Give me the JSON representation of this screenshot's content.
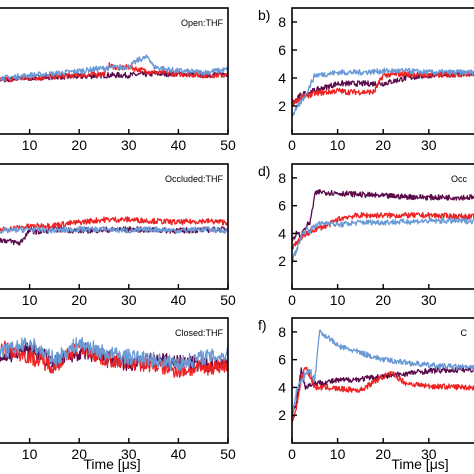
{
  "colors": {
    "dark_purple": "#5a0a4a",
    "red": "#ee2222",
    "light_blue": "#6a9ad6"
  },
  "xlabel_left": "Time [μs]",
  "xlabel_right": "Time [μs]",
  "chart_data": [
    {
      "type": "line",
      "letter": "",
      "title": "Open:THF",
      "xlim": [
        0,
        50
      ],
      "ylim": [
        0,
        9
      ],
      "xticks": [
        10,
        20,
        30,
        40,
        50
      ],
      "yticks": [],
      "series": [
        {
          "color": "#5a0a4a",
          "x": [
            0,
            5,
            10,
            15,
            20,
            25,
            30,
            35,
            40,
            45,
            50
          ],
          "y": [
            4.0,
            3.9,
            4.0,
            4.1,
            4.1,
            4.2,
            4.2,
            4.3,
            4.3,
            4.2,
            4.3
          ]
        },
        {
          "color": "#ee2222",
          "x": [
            0,
            5,
            10,
            15,
            20,
            25,
            26,
            28,
            30,
            32,
            35,
            40,
            45,
            50
          ],
          "y": [
            3.7,
            3.9,
            4.0,
            4.1,
            4.2,
            4.3,
            4.9,
            4.7,
            4.8,
            4.6,
            4.4,
            4.3,
            4.2,
            4.2
          ]
        },
        {
          "color": "#6a9ad6",
          "x": [
            0,
            5,
            10,
            15,
            20,
            25,
            30,
            32,
            34,
            35,
            38,
            40,
            45,
            50
          ],
          "y": [
            4.2,
            4.0,
            4.2,
            4.3,
            4.5,
            4.7,
            4.8,
            5.3,
            5.5,
            4.8,
            4.6,
            4.5,
            4.4,
            4.6
          ]
        }
      ]
    },
    {
      "type": "line",
      "letter": "b)",
      "title": "",
      "xlim": [
        0,
        50
      ],
      "ylim": [
        0,
        9
      ],
      "xticks": [
        0,
        10,
        20,
        30
      ],
      "yticks": [
        2,
        4,
        6,
        8
      ],
      "series": [
        {
          "color": "#5a0a4a",
          "x": [
            0,
            2,
            5,
            8,
            10,
            15,
            20,
            25,
            30,
            40,
            50
          ],
          "y": [
            2.1,
            2.8,
            3.1,
            3.4,
            3.6,
            3.6,
            3.6,
            4.0,
            4.2,
            4.3,
            4.3
          ]
        },
        {
          "color": "#ee2222",
          "x": [
            0,
            2,
            5,
            8,
            10,
            12,
            15,
            18,
            20,
            25,
            30,
            40,
            50
          ],
          "y": [
            2.2,
            2.6,
            2.9,
            3.0,
            3.1,
            3.0,
            3.0,
            3.0,
            4.2,
            4.3,
            4.2,
            4.3,
            4.2
          ]
        },
        {
          "color": "#6a9ad6",
          "x": [
            0,
            1,
            3,
            5,
            8,
            10,
            15,
            20,
            25,
            30,
            40,
            50
          ],
          "y": [
            1.3,
            1.8,
            2.8,
            4.2,
            4.3,
            4.4,
            4.4,
            4.5,
            4.5,
            4.4,
            4.4,
            4.3
          ]
        }
      ]
    },
    {
      "type": "line",
      "letter": "",
      "title": "Occluded:THF",
      "xlim": [
        0,
        50
      ],
      "ylim": [
        0,
        9
      ],
      "xticks": [
        10,
        20,
        30,
        40,
        50
      ],
      "yticks": [],
      "series": [
        {
          "color": "#5a0a4a",
          "x": [
            0,
            3,
            5,
            8,
            10,
            12,
            15,
            20,
            30,
            40,
            50
          ],
          "y": [
            3.8,
            3.6,
            3.5,
            3.3,
            4.2,
            4.1,
            4.3,
            4.2,
            4.3,
            4.2,
            4.3
          ]
        },
        {
          "color": "#ee2222",
          "x": [
            0,
            5,
            10,
            15,
            20,
            25,
            30,
            35,
            40,
            45,
            50
          ],
          "y": [
            4.2,
            4.3,
            4.5,
            4.6,
            4.8,
            5.0,
            5.0,
            4.9,
            4.8,
            4.9,
            4.8
          ]
        },
        {
          "color": "#6a9ad6",
          "x": [
            0,
            5,
            10,
            15,
            20,
            25,
            30,
            35,
            40,
            45,
            50
          ],
          "y": [
            4.1,
            4.2,
            4.3,
            4.2,
            4.3,
            4.3,
            4.2,
            4.3,
            4.2,
            4.3,
            4.2
          ]
        }
      ]
    },
    {
      "type": "line",
      "letter": "d)",
      "title": "Occ",
      "xlim": [
        0,
        50
      ],
      "ylim": [
        0,
        9
      ],
      "xticks": [
        0,
        10,
        20,
        30
      ],
      "yticks": [
        2,
        4,
        6,
        8
      ],
      "series": [
        {
          "color": "#5a0a4a",
          "x": [
            0,
            1,
            2,
            3,
            4,
            5,
            6,
            10,
            15,
            20,
            30,
            40,
            50
          ],
          "y": [
            3.5,
            4.0,
            3.8,
            4.5,
            4.8,
            6.8,
            7.0,
            6.9,
            6.8,
            6.7,
            6.6,
            6.6,
            6.5
          ]
        },
        {
          "color": "#ee2222",
          "x": [
            0,
            1,
            2,
            3,
            4,
            5,
            8,
            10,
            12,
            15,
            20,
            30,
            40,
            50
          ],
          "y": [
            3.0,
            3.3,
            3.6,
            3.9,
            4.1,
            4.3,
            4.6,
            5.0,
            5.2,
            5.3,
            5.3,
            5.3,
            5.2,
            5.2
          ]
        },
        {
          "color": "#6a9ad6",
          "x": [
            0,
            1,
            2,
            3,
            4,
            5,
            8,
            10,
            12,
            15,
            20,
            30,
            40,
            50
          ],
          "y": [
            2.0,
            2.8,
            3.8,
            4.3,
            4.2,
            4.6,
            4.8,
            4.6,
            4.7,
            4.8,
            4.8,
            4.9,
            4.9,
            5.0
          ]
        }
      ]
    },
    {
      "type": "line",
      "letter": "",
      "title": "Closed:THF",
      "xlim": [
        0,
        50
      ],
      "ylim": [
        0,
        9
      ],
      "xticks": [
        10,
        20,
        30,
        40,
        50
      ],
      "yticks": [],
      "series": [
        {
          "color": "#5a0a4a",
          "x": [
            0,
            5,
            10,
            15,
            20,
            25,
            30,
            35,
            40,
            45,
            50
          ],
          "y": [
            6.0,
            6.2,
            6.8,
            5.8,
            6.5,
            6.2,
            5.6,
            6.0,
            5.8,
            5.6,
            5.7
          ]
        },
        {
          "color": "#ee2222",
          "x": [
            0,
            5,
            10,
            15,
            20,
            25,
            30,
            35,
            40,
            45,
            50
          ],
          "y": [
            6.5,
            6.8,
            6.2,
            5.5,
            7.0,
            6.0,
            5.8,
            5.6,
            5.2,
            5.4,
            5.6
          ]
        },
        {
          "color": "#6a9ad6",
          "x": [
            0,
            5,
            10,
            15,
            20,
            25,
            30,
            35,
            40,
            45,
            50
          ],
          "y": [
            6.8,
            6.6,
            7.2,
            6.0,
            7.2,
            6.5,
            6.2,
            6.0,
            5.7,
            6.2,
            6.3
          ]
        }
      ]
    },
    {
      "type": "line",
      "letter": "f)",
      "title": "C",
      "xlim": [
        0,
        50
      ],
      "ylim": [
        0,
        9
      ],
      "xticks": [
        0,
        10,
        20,
        30
      ],
      "yticks": [
        2,
        4,
        6,
        8
      ],
      "series": [
        {
          "color": "#5a0a4a",
          "x": [
            0,
            1,
            2,
            3,
            4,
            5,
            8,
            10,
            15,
            20,
            25,
            30,
            40,
            50
          ],
          "y": [
            2.0,
            3.0,
            5.3,
            4.0,
            4.2,
            4.3,
            4.4,
            4.5,
            4.6,
            4.8,
            5.0,
            5.2,
            5.3,
            5.3
          ]
        },
        {
          "color": "#ee2222",
          "x": [
            0,
            1,
            2,
            3,
            4,
            5,
            8,
            10,
            15,
            20,
            22,
            25,
            30,
            40,
            50
          ],
          "y": [
            1.5,
            2.6,
            4.6,
            5.5,
            4.8,
            4.0,
            4.0,
            3.9,
            3.8,
            4.8,
            5.0,
            4.3,
            4.1,
            4.0,
            3.9
          ]
        },
        {
          "color": "#6a9ad6",
          "x": [
            0,
            1,
            2,
            3,
            4,
            5,
            6,
            7,
            8,
            10,
            15,
            20,
            25,
            30,
            40,
            50
          ],
          "y": [
            1.8,
            3.8,
            4.4,
            5.0,
            5.2,
            4.5,
            8.0,
            7.8,
            7.6,
            7.0,
            6.5,
            6.0,
            5.8,
            5.6,
            5.4,
            5.4
          ]
        }
      ]
    }
  ]
}
